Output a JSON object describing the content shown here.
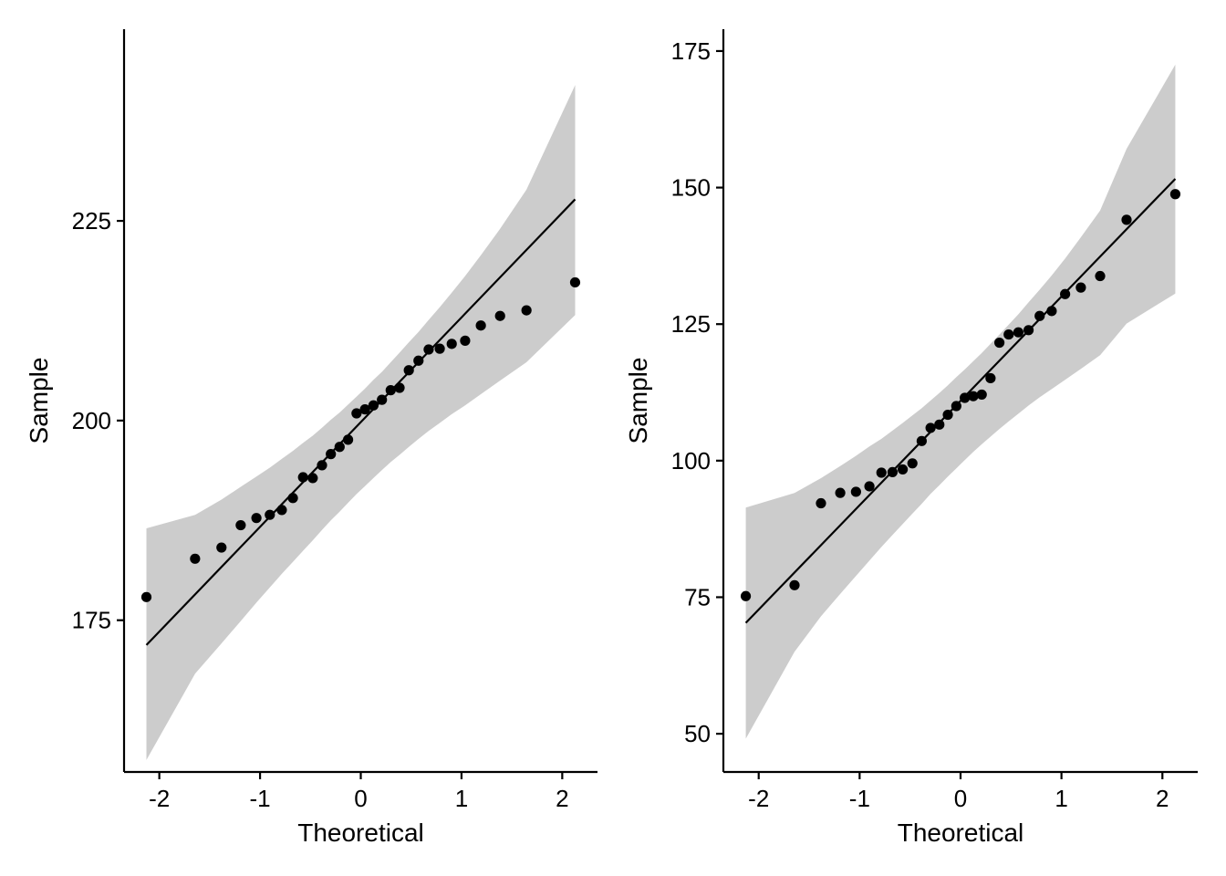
{
  "chart_data": [
    {
      "type": "scatter",
      "subtype": "qq-plot",
      "xlabel": "Theoretical",
      "ylabel": "Sample",
      "xlim": [
        -2.35,
        2.35
      ],
      "ylim": [
        156,
        249
      ],
      "x_ticks": [
        -2,
        -1,
        0,
        1,
        2
      ],
      "x_tick_labels": [
        "-2",
        "-1",
        "0",
        "1",
        "2"
      ],
      "y_ticks": [
        175,
        200,
        225
      ],
      "y_tick_labels": [
        "175",
        "200",
        "225"
      ],
      "grid": false,
      "colors": {
        "points": "#000000",
        "line": "#000000",
        "band": "#cccccc"
      },
      "points": {
        "x": [
          -2.128,
          -1.645,
          -1.383,
          -1.192,
          -1.036,
          -0.903,
          -0.784,
          -0.674,
          -0.573,
          -0.477,
          -0.385,
          -0.297,
          -0.21,
          -0.126,
          -0.042,
          0.042,
          0.126,
          0.21,
          0.297,
          0.385,
          0.477,
          0.573,
          0.674,
          0.784,
          0.903,
          1.036,
          1.192,
          1.383,
          1.645,
          2.128
        ],
        "y": [
          177.9,
          182.7,
          184.1,
          186.9,
          187.8,
          188.2,
          188.8,
          190.3,
          192.9,
          192.8,
          194.4,
          195.8,
          196.7,
          197.6,
          200.9,
          201.4,
          201.9,
          202.6,
          203.8,
          204.1,
          206.3,
          207.5,
          208.9,
          209.0,
          209.6,
          210.0,
          211.9,
          213.1,
          213.8,
          217.3
        ]
      },
      "reference_line": {
        "x": [
          -2.128,
          2.128
        ],
        "y": [
          171.9,
          227.7
        ]
      },
      "confidence_band": {
        "x": [
          -2.128,
          -1.645,
          -1.383,
          -1.192,
          -1.036,
          -0.903,
          -0.784,
          -0.674,
          -0.573,
          -0.477,
          -0.385,
          -0.297,
          -0.21,
          -0.126,
          -0.042,
          0.042,
          0.126,
          0.21,
          0.297,
          0.385,
          0.477,
          0.573,
          0.674,
          0.784,
          0.903,
          1.036,
          1.192,
          1.383,
          1.645,
          2.128
        ],
        "upper": [
          186.5,
          188.2,
          190.1,
          191.7,
          193.0,
          194.1,
          195.2,
          196.2,
          197.2,
          198.1,
          199.1,
          200.1,
          201.0,
          202.0,
          203.0,
          204.0,
          205.1,
          206.1,
          207.3,
          208.5,
          209.8,
          211.1,
          212.6,
          214.2,
          216.0,
          218.1,
          220.7,
          224.0,
          228.9,
          242.0
        ],
        "lower": [
          157.5,
          168.3,
          172.1,
          174.9,
          177.2,
          179.1,
          180.8,
          182.3,
          183.7,
          185.0,
          186.3,
          187.5,
          188.6,
          189.7,
          190.8,
          191.8,
          192.8,
          193.8,
          194.8,
          195.7,
          196.7,
          197.7,
          198.7,
          199.7,
          200.8,
          201.9,
          203.3,
          205.0,
          207.3,
          213.2
        ]
      }
    },
    {
      "type": "scatter",
      "subtype": "qq-plot",
      "xlabel": "Theoretical",
      "ylabel": "Sample",
      "xlim": [
        -2.35,
        2.35
      ],
      "ylim": [
        43,
        179
      ],
      "x_ticks": [
        -2,
        -1,
        0,
        1,
        2
      ],
      "x_tick_labels": [
        "-2",
        "-1",
        "0",
        "1",
        "2"
      ],
      "y_ticks": [
        50,
        75,
        100,
        125,
        150,
        175
      ],
      "y_tick_labels": [
        "50",
        "75",
        "100",
        "125",
        "150",
        "175"
      ],
      "grid": false,
      "colors": {
        "points": "#000000",
        "line": "#000000",
        "band": "#cccccc"
      },
      "points": {
        "x": [
          -2.128,
          -1.645,
          -1.383,
          -1.192,
          -1.036,
          -0.903,
          -0.784,
          -0.674,
          -0.573,
          -0.477,
          -0.385,
          -0.297,
          -0.21,
          -0.126,
          -0.042,
          0.042,
          0.126,
          0.21,
          0.297,
          0.385,
          0.477,
          0.573,
          0.674,
          0.784,
          0.903,
          1.036,
          1.192,
          1.383,
          1.645,
          2.128
        ],
        "y": [
          75.2,
          77.2,
          92.2,
          94.1,
          94.3,
          95.3,
          97.8,
          97.9,
          98.4,
          99.5,
          103.6,
          106.0,
          106.6,
          108.4,
          110.0,
          111.5,
          111.8,
          112.1,
          115.1,
          121.6,
          123.1,
          123.5,
          123.9,
          126.5,
          127.4,
          130.5,
          131.7,
          133.8,
          144.1,
          148.8
        ]
      },
      "reference_line": {
        "x": [
          -2.128,
          2.128
        ],
        "y": [
          70.3,
          151.6
        ]
      },
      "confidence_band": {
        "x": [
          -2.128,
          -1.645,
          -1.383,
          -1.192,
          -1.036,
          -0.903,
          -0.784,
          -0.674,
          -0.573,
          -0.477,
          -0.385,
          -0.297,
          -0.21,
          -0.126,
          -0.042,
          0.042,
          0.126,
          0.21,
          0.297,
          0.385,
          0.477,
          0.573,
          0.674,
          0.784,
          0.903,
          1.036,
          1.192,
          1.383,
          1.645,
          2.128
        ],
        "upper": [
          91.4,
          94.1,
          96.8,
          99.0,
          100.9,
          102.6,
          104.0,
          105.5,
          106.9,
          108.3,
          109.6,
          111.0,
          112.4,
          113.8,
          115.3,
          116.7,
          118.2,
          119.7,
          121.4,
          123.1,
          124.9,
          126.8,
          129.0,
          131.3,
          133.9,
          137.0,
          140.9,
          145.8,
          157.1,
          172.5
        ],
        "lower": [
          49.1,
          65.0,
          71.5,
          75.6,
          78.9,
          81.7,
          84.2,
          86.4,
          88.4,
          90.3,
          92.1,
          93.9,
          95.5,
          97.1,
          98.6,
          100.1,
          101.6,
          103.0,
          104.4,
          105.8,
          107.2,
          108.6,
          110.1,
          111.6,
          113.1,
          114.8,
          116.8,
          119.3,
          125.1,
          130.6
        ]
      }
    }
  ]
}
